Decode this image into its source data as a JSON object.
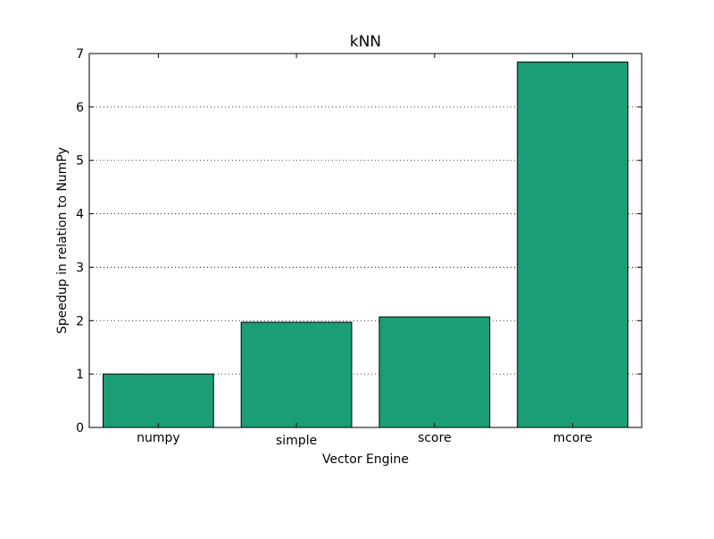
{
  "chart_data": {
    "type": "bar",
    "title": "kNN",
    "xlabel": "Vector Engine",
    "ylabel": "Speedup in relation to NumPy",
    "categories": [
      "numpy",
      "simple",
      "score",
      "mcore"
    ],
    "values": [
      1.0,
      1.97,
      2.07,
      6.84
    ],
    "ylim": [
      0,
      7
    ],
    "yticks": [
      "0",
      "1",
      "2",
      "3",
      "4",
      "5",
      "6",
      "7"
    ],
    "grid": "y-dotted",
    "legend": "none",
    "bar_color": "#1b9e77"
  }
}
